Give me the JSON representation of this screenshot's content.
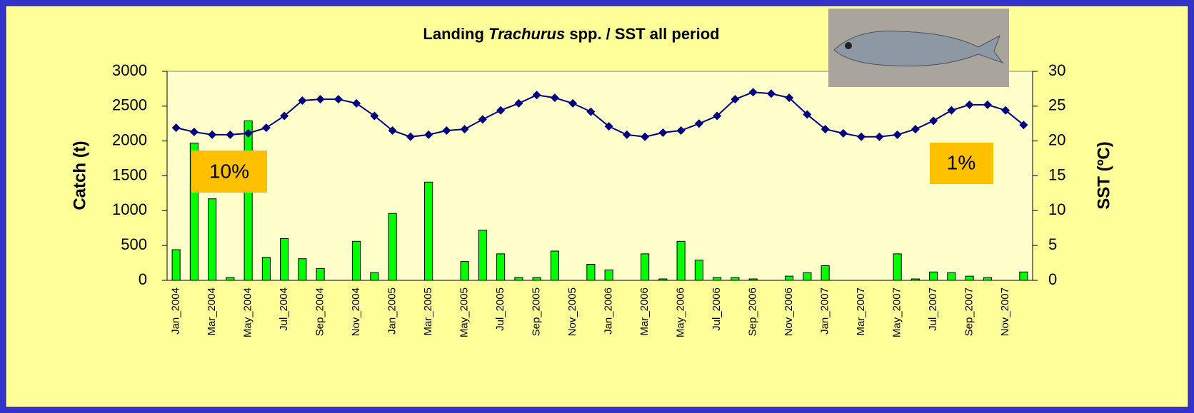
{
  "chart_data": {
    "type": "bar",
    "title": [
      "Landing ",
      "Trachurus",
      " spp. / SST all period"
    ],
    "y_label": "Catch (t)",
    "y2_label": "SST (ºC)",
    "categories": [
      "Jan_2004",
      null,
      "Mar_2004",
      null,
      "May_2004",
      null,
      "Jul_2004",
      null,
      "Sep_2004",
      null,
      "Nov_2004",
      null,
      "Jan_2005",
      null,
      "Mar_2005",
      null,
      "May_2005",
      null,
      "Jul_2005",
      null,
      "Sep_2005",
      null,
      "Nov_2005",
      null,
      "Jan_2006",
      null,
      "Mar_2006",
      null,
      "May_2006",
      null,
      "Jul_2006",
      null,
      "Sep_2006",
      null,
      "Nov_2006",
      null,
      "Jan_2007",
      null,
      "Mar_2007",
      null,
      "May_2007",
      null,
      "Jul_2007",
      null,
      "Sep_2007",
      null,
      "Nov_2007",
      null
    ],
    "series": [
      {
        "type": "bar",
        "color": "#00ff00",
        "values": [
          440,
          1970,
          1170,
          40,
          2290,
          330,
          600,
          310,
          170,
          0,
          560,
          110,
          960,
          0,
          1410,
          0,
          270,
          720,
          380,
          40,
          40,
          420,
          0,
          230,
          150,
          0,
          380,
          20,
          560,
          290,
          40,
          40,
          20,
          0,
          60,
          110,
          210,
          0,
          0,
          0,
          380,
          20,
          120,
          110,
          60,
          40,
          0,
          120
        ]
      },
      {
        "type": "line",
        "axis": "y2",
        "color": "#000080",
        "values": [
          21.9,
          21.3,
          20.9,
          20.9,
          21.1,
          21.9,
          23.6,
          25.8,
          26.0,
          26.0,
          25.4,
          23.6,
          21.5,
          20.6,
          20.9,
          21.5,
          21.7,
          23.1,
          24.4,
          25.4,
          26.6,
          26.2,
          25.4,
          24.2,
          22.1,
          20.9,
          20.6,
          21.2,
          21.5,
          22.5,
          23.6,
          26.0,
          27.0,
          26.8,
          26.2,
          23.8,
          21.7,
          21.1,
          20.6,
          20.6,
          20.9,
          21.7,
          22.9,
          24.4,
          25.2,
          25.2,
          24.4,
          22.3
        ]
      }
    ],
    "ylim": [
      0,
      3000
    ],
    "yticks": [
      0,
      500,
      1000,
      1500,
      2000,
      2500,
      3000
    ],
    "y2lim": [
      0,
      30
    ],
    "y2ticks": [
      0,
      5,
      10,
      15,
      20,
      25,
      30
    ],
    "grid": false,
    "annotations": [
      "10%",
      "1%"
    ]
  }
}
